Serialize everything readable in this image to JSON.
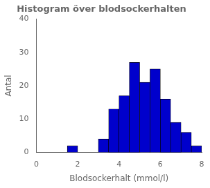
{
  "chart_data": {
    "type": "histogram",
    "title": "Histogram över blodsockerhalten",
    "xlabel": "Blodsockerhalt (mmol/l)",
    "ylabel": "Antal",
    "bins": [
      1.5,
      2.0,
      2.5,
      3.0,
      3.5,
      4.0,
      4.5,
      5.0,
      5.5,
      6.0,
      6.5,
      7.0,
      7.5,
      8.0
    ],
    "counts": [
      2,
      0,
      0,
      4,
      13,
      17,
      27,
      21,
      25,
      16,
      9,
      6,
      2
    ],
    "color": "#0000cc",
    "xlim": [
      0,
      8
    ],
    "ylim": [
      0,
      40
    ],
    "xticks": [
      0,
      2,
      4,
      6,
      8
    ],
    "yticks": [
      0,
      10,
      20,
      30,
      40
    ],
    "grid": false
  }
}
